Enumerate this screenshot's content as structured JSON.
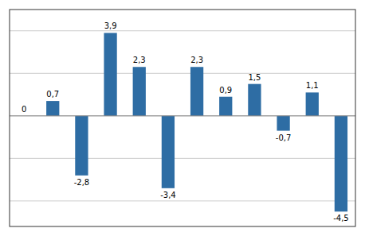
{
  "chart_data": {
    "type": "bar",
    "categories": [
      null,
      null,
      null,
      null,
      null,
      null,
      null,
      null,
      null,
      null,
      null,
      null
    ],
    "values": [
      0,
      0.7,
      -2.8,
      3.9,
      2.3,
      -3.4,
      2.3,
      0.9,
      1.5,
      -0.7,
      1.1,
      -4.5
    ],
    "value_labels": [
      "0",
      "0,7",
      "-2,8",
      "3,9",
      "2,3",
      "-3,4",
      "2,3",
      "0,9",
      "1,5",
      "-0,7",
      "1,1",
      "-4,5"
    ],
    "color": "#2E6DA4",
    "ylim": [
      -5.2,
      5.0
    ],
    "yticks": [
      -4,
      -2,
      0,
      2,
      4
    ],
    "grid": true,
    "data_labels": true,
    "tick_labels": false
  }
}
